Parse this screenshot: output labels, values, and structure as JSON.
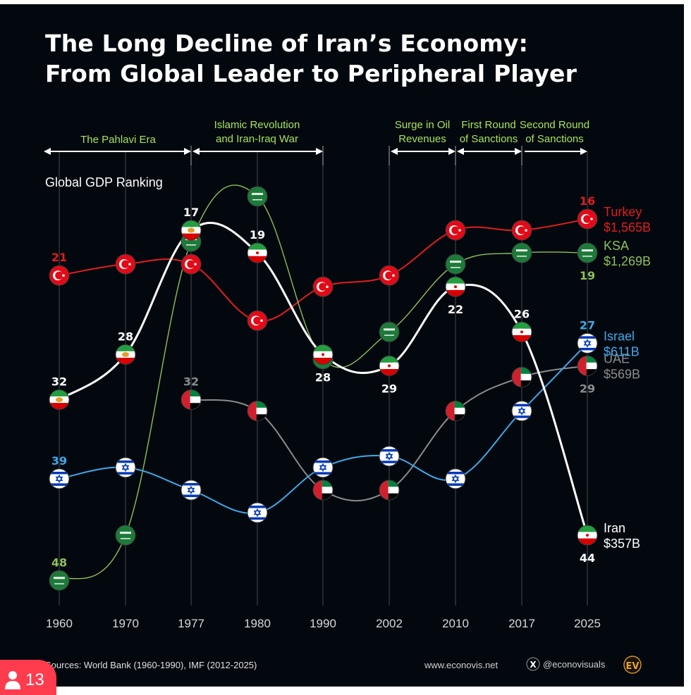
{
  "title_line1": "The Long Decline of Iran’s Economy:",
  "title_line2": "From Global Leader to Peripheral Player",
  "footer": {
    "sources": "Sources: World Bank (1960-1990), IMF (2012-2025)",
    "website": "www.econovis.net",
    "handle": "@econovisuals",
    "logo": "EV",
    "x_icon": "x-logo-icon"
  },
  "badge": {
    "icon": "user-icon",
    "count": "13"
  },
  "colors": {
    "background": "#03080f",
    "turkey": "#e11d1d",
    "ksa": "#8fbf5a",
    "iran": "#ffffff",
    "israel": "#3fa9e8",
    "uae": "#8c8c8c",
    "era": "#a8e35a"
  },
  "chart_data": {
    "type": "line",
    "title": "The Long Decline of Iran’s Economy: From Global Leader to Peripheral Player",
    "ylabel": "Global GDP Ranking",
    "xlabel": "",
    "x": [
      "1960",
      "1970",
      "1977",
      "1980",
      "1990",
      "2002",
      "2010",
      "2017",
      "2025"
    ],
    "ylim": [
      10,
      50
    ],
    "y_inverted": true,
    "grid": "vertical",
    "eras": [
      {
        "label_lines": [
          "The Pahlavi Era"
        ],
        "from": "1960",
        "to": "1977",
        "arrow": "both"
      },
      {
        "label_lines": [
          "Islamic Revolution",
          "and Iran-Iraq War"
        ],
        "from": "1977",
        "to": "1990",
        "arrow": "both"
      },
      {
        "label_lines": [
          "Surge in Oil",
          "Revenues"
        ],
        "from": "2002",
        "to": "2010",
        "arrow": "both"
      },
      {
        "label_lines": [
          "First  Round",
          "of Sanctions"
        ],
        "from": "2010",
        "to": "2017",
        "arrow": "both"
      },
      {
        "label_lines": [
          "Second Round",
          "of Sanctions"
        ],
        "from": "2017",
        "to": "2025",
        "arrow": "right"
      }
    ],
    "series": [
      {
        "name": "Turkey",
        "flag": "turkey",
        "color": "#e11d1d",
        "values": [
          21,
          20,
          20,
          25,
          22,
          21,
          17,
          17,
          16
        ],
        "labels": [
          {
            "i": 0,
            "text": "21",
            "pos": "above"
          },
          {
            "i": 8,
            "text": "16",
            "pos": "above"
          }
        ],
        "end_label": {
          "name": "Turkey",
          "value": "$1,565B"
        }
      },
      {
        "name": "KSA",
        "flag": "ksa",
        "color": "#8fbf5a",
        "values": [
          48,
          44,
          18,
          14,
          28.4,
          26,
          20,
          19,
          19
        ],
        "labels": [
          {
            "i": 0,
            "text": "48",
            "pos": "above"
          },
          {
            "i": 8,
            "text": "19",
            "pos": "below"
          }
        ],
        "end_label": {
          "name": "KSA",
          "value": "$1,269B"
        }
      },
      {
        "name": "UAE",
        "flag": "uae",
        "color": "#8c8c8c",
        "values": [
          null,
          null,
          32,
          33,
          40,
          40,
          33,
          30,
          29
        ],
        "labels": [
          {
            "i": 2,
            "text": "32",
            "pos": "above"
          },
          {
            "i": 8,
            "text": "29",
            "pos": "below"
          }
        ],
        "end_label": {
          "name": "UAE",
          "value": "$569B"
        }
      },
      {
        "name": "Israel",
        "flag": "israel",
        "color": "#3fa9e8",
        "values": [
          39,
          38,
          40,
          42,
          38,
          37,
          39,
          33,
          27
        ],
        "labels": [
          {
            "i": 0,
            "text": "39",
            "pos": "above"
          },
          {
            "i": 8,
            "text": "27",
            "pos": "above"
          }
        ],
        "end_label": {
          "name": "Israel",
          "value": "$611B"
        }
      },
      {
        "name": "Iran",
        "flag": "iran",
        "color": "#ffffff",
        "values": [
          32,
          28,
          17,
          19,
          28,
          29,
          22,
          26,
          44
        ],
        "labels": [
          {
            "i": 0,
            "text": "32",
            "pos": "above"
          },
          {
            "i": 1,
            "text": "28",
            "pos": "above"
          },
          {
            "i": 2,
            "text": "17",
            "pos": "above"
          },
          {
            "i": 3,
            "text": "19",
            "pos": "above"
          },
          {
            "i": 4,
            "text": "28",
            "pos": "below"
          },
          {
            "i": 5,
            "text": "29",
            "pos": "below"
          },
          {
            "i": 6,
            "text": "22",
            "pos": "below"
          },
          {
            "i": 7,
            "text": "26",
            "pos": "above"
          },
          {
            "i": 8,
            "text": "44",
            "pos": "below"
          }
        ],
        "end_label": {
          "name": "Iran",
          "value": "$357B"
        }
      }
    ]
  }
}
